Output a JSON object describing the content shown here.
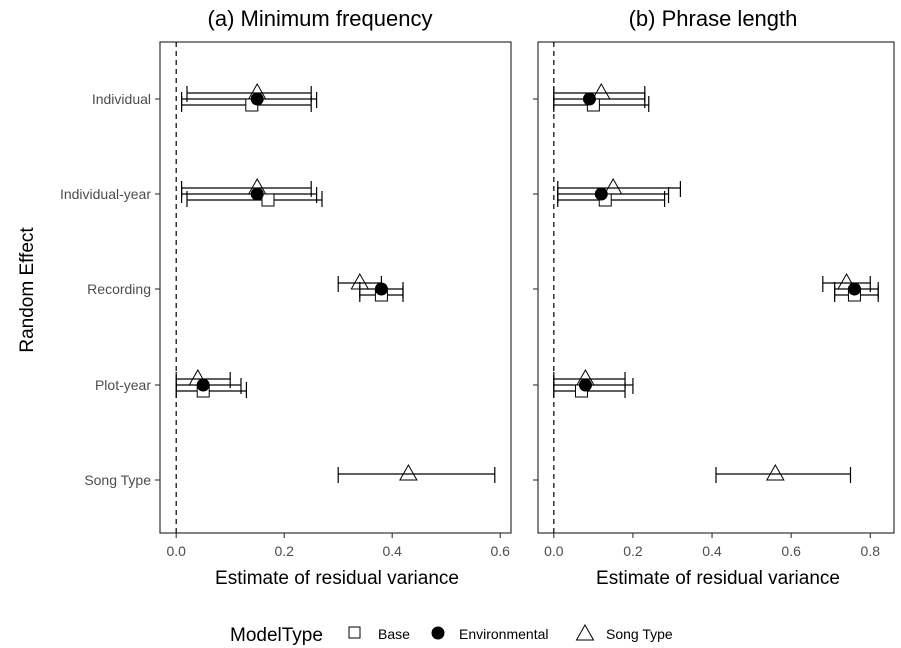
{
  "chart_data": [
    {
      "type": "errorbar",
      "title": "(a) Minimum frequency",
      "xlabel": "Estimate of residual variance",
      "ylabel": "Random Effect",
      "xlim": [
        -0.03,
        0.62
      ],
      "x_ticks": [
        0.0,
        0.2,
        0.4,
        0.6
      ],
      "x_tick_labels": [
        "0.0",
        "0.2",
        "0.4",
        "0.6"
      ],
      "categories": [
        "Individual",
        "Individual-year",
        "Recording",
        "Plot-year",
        "Song Type"
      ],
      "reference_line": 0,
      "series": [
        {
          "name": "Base",
          "marker": "square",
          "points": [
            {
              "category": "Individual",
              "value": 0.14,
              "low": 0.01,
              "high": 0.25
            },
            {
              "category": "Individual-year",
              "value": 0.17,
              "low": 0.02,
              "high": 0.27
            },
            {
              "category": "Recording",
              "value": 0.38,
              "low": 0.34,
              "high": 0.42
            },
            {
              "category": "Plot-year",
              "value": 0.05,
              "low": 0.0,
              "high": 0.13
            }
          ]
        },
        {
          "name": "Environmental",
          "marker": "circle",
          "points": [
            {
              "category": "Individual",
              "value": 0.15,
              "low": 0.01,
              "high": 0.26
            },
            {
              "category": "Individual-year",
              "value": 0.15,
              "low": 0.01,
              "high": 0.26
            },
            {
              "category": "Recording",
              "value": 0.38,
              "low": 0.34,
              "high": 0.42
            },
            {
              "category": "Plot-year",
              "value": 0.05,
              "low": 0.0,
              "high": 0.12
            }
          ]
        },
        {
          "name": "Song Type",
          "marker": "triangle",
          "points": [
            {
              "category": "Individual",
              "value": 0.15,
              "low": 0.02,
              "high": 0.25
            },
            {
              "category": "Individual-year",
              "value": 0.15,
              "low": 0.01,
              "high": 0.25
            },
            {
              "category": "Recording",
              "value": 0.34,
              "low": 0.3,
              "high": 0.38
            },
            {
              "category": "Plot-year",
              "value": 0.04,
              "low": 0.0,
              "high": 0.1
            },
            {
              "category": "Song Type",
              "value": 0.43,
              "low": 0.3,
              "high": 0.59
            }
          ]
        }
      ]
    },
    {
      "type": "errorbar",
      "title": "(b) Phrase length",
      "xlabel": "Estimate of residual variance",
      "ylabel": "",
      "xlim": [
        -0.04,
        0.86
      ],
      "x_ticks": [
        0.0,
        0.2,
        0.4,
        0.6,
        0.8
      ],
      "x_tick_labels": [
        "0.0",
        "0.2",
        "0.4",
        "0.6",
        "0.8"
      ],
      "categories": [
        "Individual",
        "Individual-year",
        "Recording",
        "Plot-year",
        "Song Type"
      ],
      "reference_line": 0,
      "series": [
        {
          "name": "Base",
          "marker": "square",
          "points": [
            {
              "category": "Individual",
              "value": 0.1,
              "low": 0.0,
              "high": 0.24
            },
            {
              "category": "Individual-year",
              "value": 0.13,
              "low": 0.01,
              "high": 0.28
            },
            {
              "category": "Recording",
              "value": 0.76,
              "low": 0.71,
              "high": 0.82
            },
            {
              "category": "Plot-year",
              "value": 0.07,
              "low": 0.0,
              "high": 0.18
            }
          ]
        },
        {
          "name": "Environmental",
          "marker": "circle",
          "points": [
            {
              "category": "Individual",
              "value": 0.09,
              "low": 0.0,
              "high": 0.23
            },
            {
              "category": "Individual-year",
              "value": 0.12,
              "low": 0.01,
              "high": 0.29
            },
            {
              "category": "Recording",
              "value": 0.76,
              "low": 0.71,
              "high": 0.82
            },
            {
              "category": "Plot-year",
              "value": 0.08,
              "low": 0.0,
              "high": 0.2
            }
          ]
        },
        {
          "name": "Song Type",
          "marker": "triangle",
          "points": [
            {
              "category": "Individual",
              "value": 0.12,
              "low": 0.0,
              "high": 0.23
            },
            {
              "category": "Individual-year",
              "value": 0.15,
              "low": 0.01,
              "high": 0.32
            },
            {
              "category": "Recording",
              "value": 0.74,
              "low": 0.68,
              "high": 0.8
            },
            {
              "category": "Plot-year",
              "value": 0.08,
              "low": 0.0,
              "high": 0.18
            },
            {
              "category": "Song Type",
              "value": 0.56,
              "low": 0.41,
              "high": 0.75
            }
          ]
        }
      ]
    }
  ],
  "legend": {
    "title": "ModelType",
    "placement": "bottom",
    "items": [
      {
        "label": "Base",
        "marker": "square"
      },
      {
        "label": "Environmental",
        "marker": "circle"
      },
      {
        "label": "Song Type",
        "marker": "triangle"
      }
    ]
  },
  "colors": {
    "ink": "#000000",
    "tick_text": "#4d4d4d",
    "panel_border": "#333333"
  }
}
